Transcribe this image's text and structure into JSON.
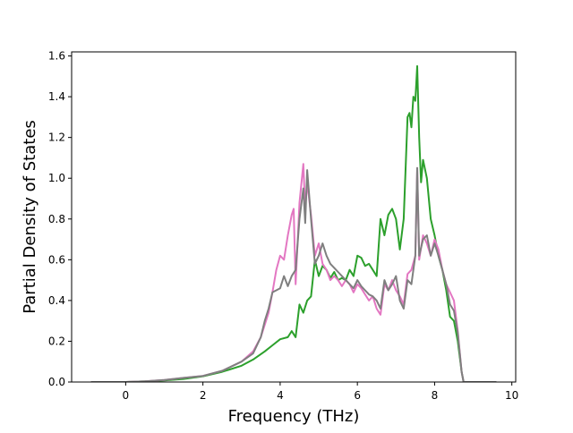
{
  "chart_data": {
    "type": "line",
    "title": "",
    "xlabel": "Frequency (THz)",
    "ylabel": "Partial Density of States",
    "xlim": [
      -1.4,
      10.1
    ],
    "ylim": [
      0.0,
      1.62
    ],
    "xticks": [
      0,
      2,
      4,
      6,
      8,
      10
    ],
    "yticks": [
      0.0,
      0.2,
      0.4,
      0.6,
      0.8,
      1.0,
      1.2,
      1.4,
      1.6
    ],
    "grid": false,
    "legend": "none",
    "series": [
      {
        "color": "#2ca02c",
        "x": [
          -0.9,
          0.0,
          0.5,
          1.0,
          1.5,
          2.0,
          2.5,
          3.0,
          3.3,
          3.6,
          3.8,
          4.0,
          4.2,
          4.3,
          4.4,
          4.5,
          4.6,
          4.7,
          4.8,
          4.9,
          5.0,
          5.1,
          5.2,
          5.3,
          5.4,
          5.5,
          5.6,
          5.7,
          5.8,
          5.9,
          6.0,
          6.1,
          6.2,
          6.3,
          6.4,
          6.5,
          6.6,
          6.7,
          6.8,
          6.9,
          7.0,
          7.1,
          7.2,
          7.3,
          7.35,
          7.4,
          7.45,
          7.5,
          7.55,
          7.6,
          7.65,
          7.7,
          7.8,
          7.9,
          8.0,
          8.1,
          8.2,
          8.3,
          8.4,
          8.5,
          8.6,
          8.7,
          8.75,
          9.6
        ],
        "y": [
          0.0,
          0.0,
          0.003,
          0.008,
          0.015,
          0.028,
          0.05,
          0.08,
          0.11,
          0.15,
          0.18,
          0.21,
          0.22,
          0.25,
          0.22,
          0.38,
          0.34,
          0.4,
          0.42,
          0.6,
          0.52,
          0.57,
          0.55,
          0.51,
          0.54,
          0.5,
          0.51,
          0.5,
          0.55,
          0.52,
          0.62,
          0.61,
          0.57,
          0.58,
          0.55,
          0.52,
          0.8,
          0.72,
          0.82,
          0.85,
          0.8,
          0.65,
          0.8,
          1.3,
          1.32,
          1.25,
          1.4,
          1.38,
          1.55,
          1.2,
          0.98,
          1.09,
          1.0,
          0.8,
          0.72,
          0.62,
          0.55,
          0.45,
          0.32,
          0.3,
          0.2,
          0.05,
          0.0,
          0.0
        ]
      },
      {
        "color": "#e377c2",
        "x": [
          -0.9,
          0.0,
          0.5,
          1.0,
          1.5,
          2.0,
          2.5,
          3.0,
          3.3,
          3.5,
          3.7,
          3.8,
          3.9,
          4.0,
          4.1,
          4.2,
          4.3,
          4.35,
          4.4,
          4.5,
          4.6,
          4.65,
          4.7,
          4.8,
          4.9,
          5.0,
          5.1,
          5.2,
          5.3,
          5.4,
          5.5,
          5.6,
          5.7,
          5.8,
          5.9,
          6.0,
          6.1,
          6.2,
          6.3,
          6.4,
          6.5,
          6.6,
          6.7,
          6.8,
          6.9,
          7.0,
          7.1,
          7.2,
          7.3,
          7.4,
          7.5,
          7.55,
          7.6,
          7.7,
          7.8,
          7.9,
          8.0,
          8.1,
          8.2,
          8.3,
          8.4,
          8.5,
          8.6,
          8.7,
          8.75,
          9.6
        ],
        "y": [
          0.0,
          0.0,
          0.003,
          0.01,
          0.02,
          0.03,
          0.055,
          0.1,
          0.15,
          0.22,
          0.34,
          0.44,
          0.55,
          0.62,
          0.6,
          0.72,
          0.82,
          0.85,
          0.48,
          0.88,
          1.07,
          0.85,
          0.98,
          0.82,
          0.62,
          0.68,
          0.58,
          0.55,
          0.5,
          0.52,
          0.5,
          0.47,
          0.5,
          0.48,
          0.44,
          0.48,
          0.46,
          0.43,
          0.4,
          0.42,
          0.36,
          0.33,
          0.48,
          0.45,
          0.5,
          0.45,
          0.42,
          0.38,
          0.53,
          0.55,
          0.62,
          1.05,
          0.6,
          0.72,
          0.68,
          0.62,
          0.7,
          0.65,
          0.55,
          0.48,
          0.44,
          0.4,
          0.25,
          0.05,
          0.0,
          0.0
        ]
      },
      {
        "color": "#7f7f7f",
        "x": [
          -0.9,
          0.0,
          0.5,
          1.0,
          1.5,
          2.0,
          2.5,
          3.0,
          3.3,
          3.5,
          3.6,
          3.7,
          3.8,
          4.0,
          4.1,
          4.2,
          4.3,
          4.4,
          4.5,
          4.6,
          4.65,
          4.7,
          4.8,
          4.9,
          5.0,
          5.1,
          5.2,
          5.3,
          5.4,
          5.5,
          5.6,
          5.7,
          5.8,
          5.9,
          6.0,
          6.1,
          6.2,
          6.3,
          6.4,
          6.5,
          6.6,
          6.7,
          6.8,
          6.9,
          7.0,
          7.1,
          7.2,
          7.3,
          7.4,
          7.5,
          7.55,
          7.6,
          7.7,
          7.8,
          7.9,
          8.0,
          8.1,
          8.2,
          8.3,
          8.4,
          8.5,
          8.6,
          8.7,
          8.75,
          9.6
        ],
        "y": [
          0.0,
          0.0,
          0.003,
          0.01,
          0.02,
          0.03,
          0.055,
          0.1,
          0.14,
          0.22,
          0.3,
          0.36,
          0.44,
          0.46,
          0.52,
          0.47,
          0.52,
          0.55,
          0.8,
          0.95,
          0.78,
          1.04,
          0.8,
          0.58,
          0.62,
          0.68,
          0.62,
          0.58,
          0.56,
          0.54,
          0.52,
          0.5,
          0.48,
          0.46,
          0.5,
          0.47,
          0.45,
          0.43,
          0.42,
          0.4,
          0.36,
          0.5,
          0.45,
          0.48,
          0.52,
          0.4,
          0.36,
          0.5,
          0.48,
          0.62,
          1.05,
          0.62,
          0.7,
          0.72,
          0.62,
          0.68,
          0.62,
          0.55,
          0.48,
          0.38,
          0.35,
          0.24,
          0.05,
          0.0,
          0.0
        ]
      }
    ]
  }
}
